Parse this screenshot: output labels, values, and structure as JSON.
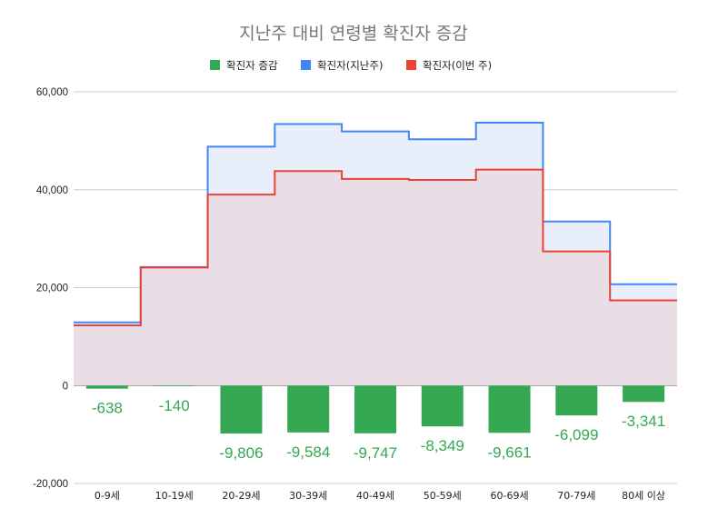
{
  "chart_data": {
    "type": "bar",
    "title": "지난주 대비 연령별 확진자 증감",
    "categories": [
      "0-9세",
      "10-19세",
      "20-29세",
      "30-39세",
      "40-49세",
      "50-59세",
      "60-69세",
      "70-79세",
      "80세 이상"
    ],
    "series": [
      {
        "name": "확진자 증감",
        "kind": "bar",
        "color": "#34a853",
        "values": [
          -638,
          -140,
          -9806,
          -9584,
          -9747,
          -8349,
          -9661,
          -6099,
          -3341
        ],
        "labels": [
          "-638",
          "-140",
          "-9,806",
          "-9,584",
          "-9,747",
          "-8,349",
          "-9,661",
          "-6,099",
          "-3,341"
        ]
      },
      {
        "name": "확진자(지난주)",
        "kind": "stepped-area",
        "color": "#4285f4",
        "values": [
          12900,
          24200,
          48800,
          53400,
          51900,
          50300,
          53700,
          33500,
          20700
        ]
      },
      {
        "name": "확진자(이번 주)",
        "kind": "stepped-area",
        "color": "#ea4335",
        "values": [
          12300,
          24100,
          39000,
          43800,
          42200,
          42000,
          44100,
          27400,
          17400
        ]
      }
    ],
    "ylim": [
      -20000,
      60000
    ],
    "yticks": [
      -20000,
      0,
      20000,
      40000,
      60000
    ],
    "ytick_labels": [
      "-20,000",
      "0",
      "20,000",
      "40,000",
      "60,000"
    ],
    "grid": true,
    "legend_position": "top"
  }
}
